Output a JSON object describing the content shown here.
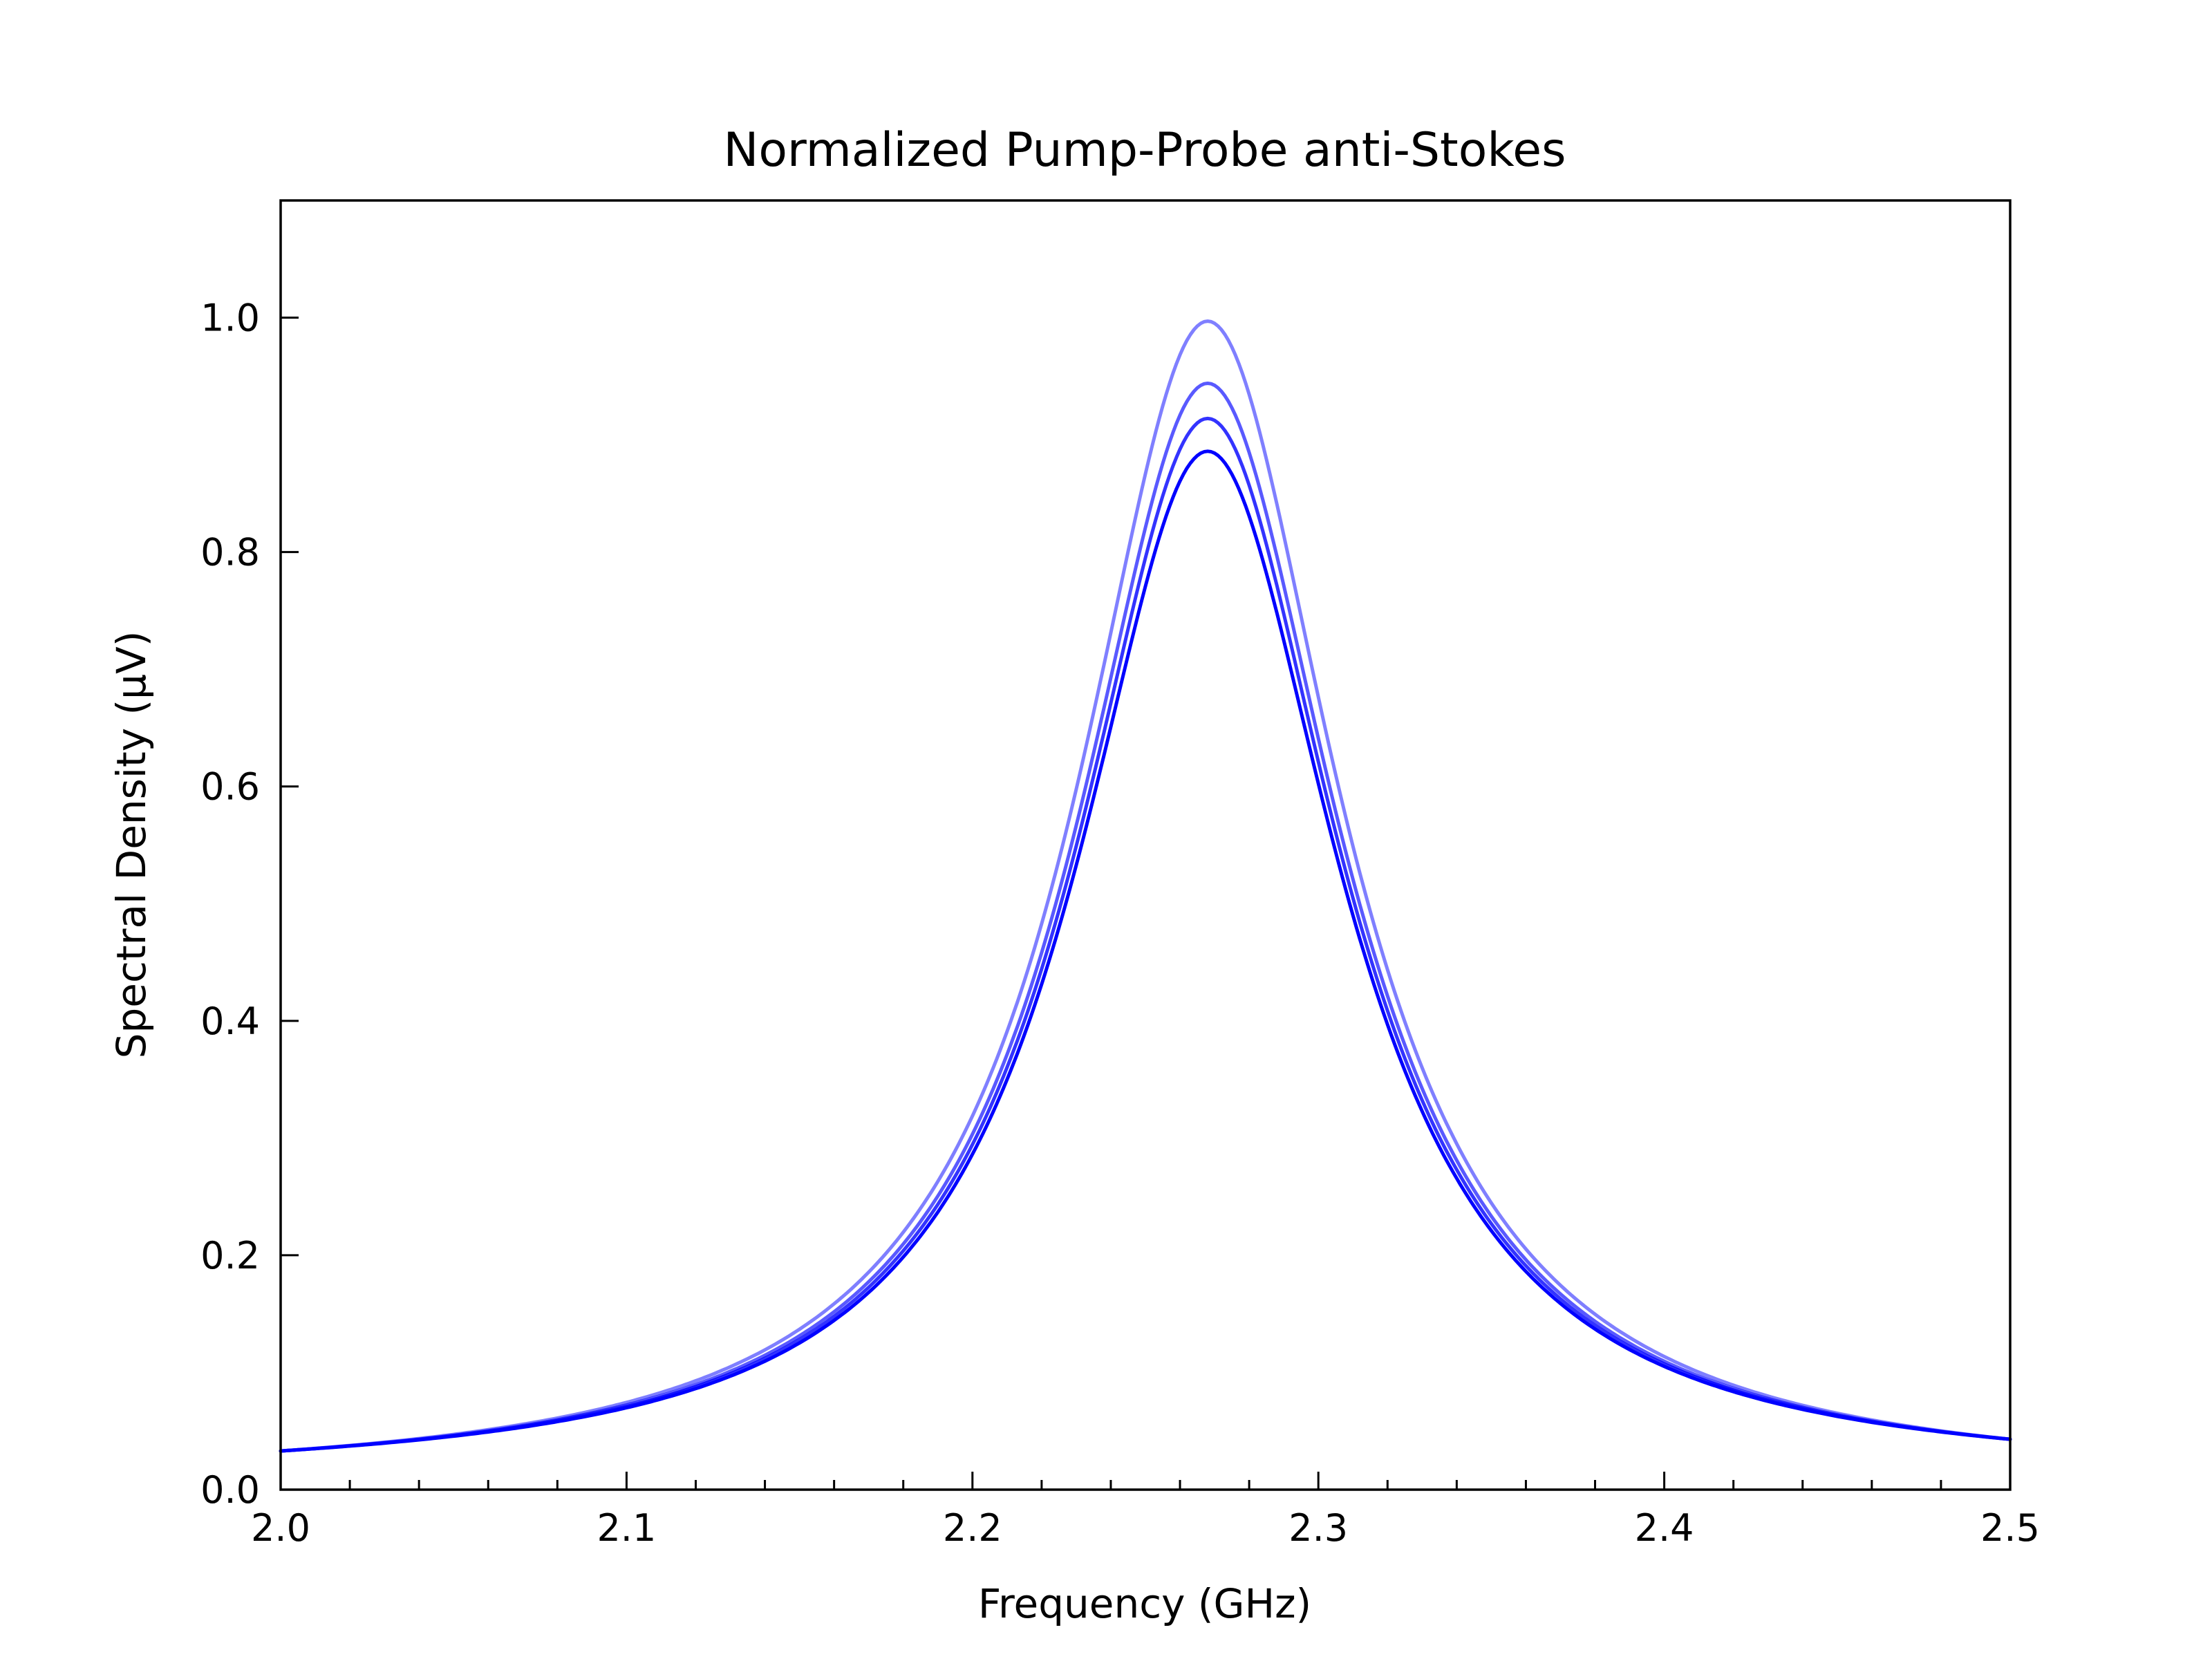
{
  "chart_data": {
    "type": "line",
    "title": "Normalized Pump-Probe anti-Stokes",
    "xlabel": "Frequency (GHz)",
    "ylabel": "Spectral Density (μV)",
    "xlim": [
      2.0,
      2.5
    ],
    "ylim": [
      0.0,
      1.1
    ],
    "x_ticks": [
      "2.0",
      "2.1",
      "2.2",
      "2.3",
      "2.4",
      "2.5"
    ],
    "y_ticks": [
      "0.0",
      "0.2",
      "0.4",
      "0.6",
      "0.8",
      "1.0"
    ],
    "grid": false,
    "legend": "none",
    "series": [
      {
        "color": "#0000ff",
        "opacity": 0.5,
        "peak_x": 2.268,
        "peak_y": 0.997,
        "start_y": 0.033,
        "end_y": 0.043
      },
      {
        "color": "#0000ff",
        "opacity": 0.65,
        "peak_x": 2.268,
        "peak_y": 0.944,
        "start_y": 0.033,
        "end_y": 0.043
      },
      {
        "color": "#0000ff",
        "opacity": 0.8,
        "peak_x": 2.268,
        "peak_y": 0.914,
        "start_y": 0.033,
        "end_y": 0.043
      },
      {
        "color": "#0000ff",
        "opacity": 1.0,
        "peak_x": 2.268,
        "peak_y": 0.886,
        "start_y": 0.033,
        "end_y": 0.043
      }
    ]
  }
}
